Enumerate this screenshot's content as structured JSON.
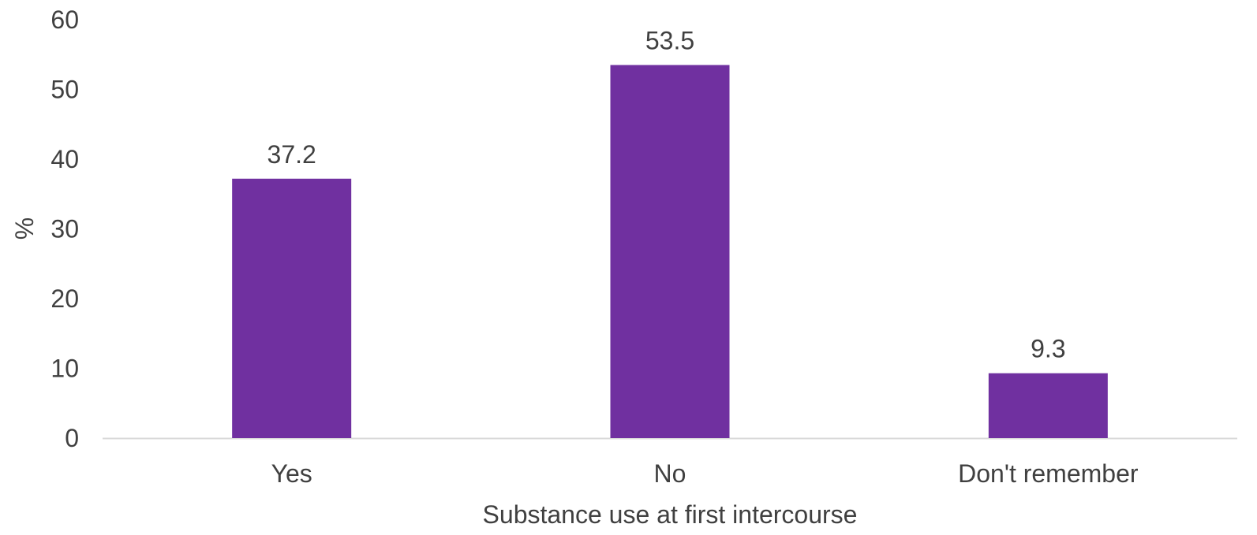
{
  "chart_data": {
    "type": "bar",
    "categories": [
      "Yes",
      "No",
      "Don't remember"
    ],
    "values": [
      37.2,
      53.5,
      9.3
    ],
    "data_labels": [
      "37.2",
      "53.5",
      "9.3"
    ],
    "title": "",
    "xlabel": "Substance use at first intercourse",
    "ylabel": "%",
    "ylim": [
      0,
      60
    ],
    "yticks": [
      "0",
      "10",
      "20",
      "30",
      "40",
      "50",
      "60"
    ],
    "grid": false,
    "legend": "none",
    "bar_color": "#7030A0",
    "axis_color": "#D9D9D9",
    "text_color": "#404040"
  }
}
